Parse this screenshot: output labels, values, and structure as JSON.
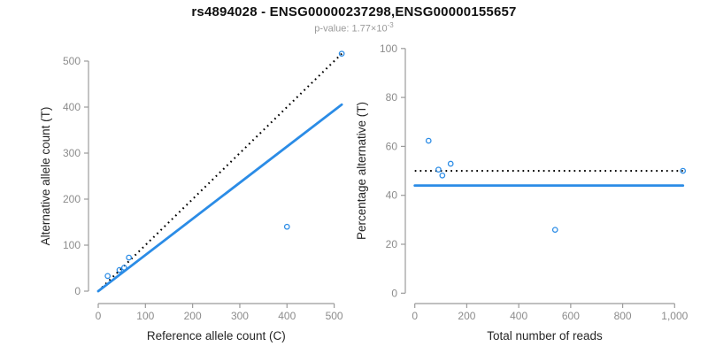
{
  "header": {
    "title": "rs4894028 - ENSG00000237298,ENSG00000155657",
    "subtitle_prefix": "p-value: 1.77×10",
    "subtitle_exponent": "-3"
  },
  "theme": {
    "background": "#ffffff",
    "accent_blue": "#2b8ce6",
    "dotted_line_color": "#000000",
    "axis_color": "#9b9b9b",
    "tick_label_color": "#8c8c8c",
    "axis_title_color": "#262626",
    "title_color": "#111111",
    "subtitle_color": "#9a9a9a"
  },
  "chart_data": [
    {
      "type": "scatter",
      "name": "allele-counts-scatter",
      "title": "",
      "xlabel": "Reference allele count (C)",
      "ylabel": "Alternative allele count (T)",
      "xlim": [
        0,
        520
      ],
      "ylim": [
        0,
        520
      ],
      "grid": "off",
      "legend": "none",
      "xticks": [
        0,
        100,
        200,
        300,
        400,
        500
      ],
      "xtick_labels": [
        "0",
        "100",
        "200",
        "300",
        "400",
        "500"
      ],
      "yticks": [
        0,
        100,
        200,
        300,
        400,
        500
      ],
      "ytick_labels": [
        "0",
        "100",
        "200",
        "300",
        "400",
        "500"
      ],
      "marker": "open-circle",
      "points": [
        [
          20,
          33
        ],
        [
          45,
          46
        ],
        [
          55,
          51
        ],
        [
          65,
          73
        ],
        [
          400,
          140
        ],
        [
          516,
          516
        ]
      ],
      "lines": [
        {
          "name": "identity-line",
          "style": "dotted",
          "color": "#000000",
          "from": [
            0,
            0
          ],
          "to": [
            516,
            516
          ]
        },
        {
          "name": "fit-line",
          "style": "solid",
          "color": "#2b8ce6",
          "from": [
            0,
            0
          ],
          "to": [
            516,
            405.4
          ]
        }
      ]
    },
    {
      "type": "scatter",
      "name": "percentage-vs-reads-scatter",
      "title": "",
      "xlabel": "Total number of reads",
      "ylabel": "Percentage alternative (T)",
      "xlim": [
        0,
        1040
      ],
      "ylim": [
        0,
        100
      ],
      "grid": "off",
      "legend": "none",
      "xticks": [
        0,
        200,
        400,
        600,
        800,
        1000
      ],
      "xtick_labels": [
        "0",
        "200",
        "400",
        "600",
        "800",
        "1,000"
      ],
      "yticks": [
        0,
        20,
        40,
        60,
        80,
        100
      ],
      "ytick_labels": [
        "0",
        "20",
        "40",
        "60",
        "80",
        "100"
      ],
      "marker": "open-circle",
      "points": [
        [
          53,
          62.3
        ],
        [
          91,
          50.5
        ],
        [
          106,
          48.1
        ],
        [
          138,
          52.9
        ],
        [
          540,
          25.9
        ],
        [
          1032,
          50
        ]
      ],
      "lines": [
        {
          "name": "expected-50pct-line",
          "style": "dotted",
          "color": "#000000",
          "from": [
            0,
            50
          ],
          "to": [
            1032,
            50
          ]
        },
        {
          "name": "fit-percentage-line",
          "style": "solid",
          "color": "#2b8ce6",
          "from": [
            0,
            44
          ],
          "to": [
            1032,
            44
          ]
        }
      ]
    }
  ]
}
